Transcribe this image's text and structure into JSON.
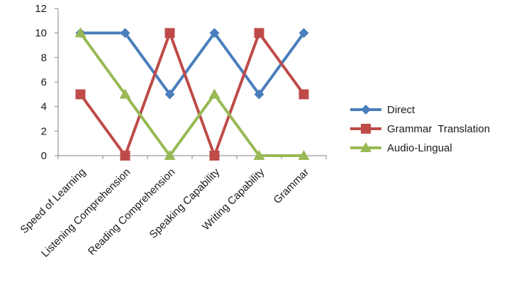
{
  "chart_data": {
    "type": "line",
    "title": "",
    "xlabel": "",
    "ylabel": "",
    "ylim": [
      0,
      12
    ],
    "yticks": [
      0,
      2,
      4,
      6,
      8,
      10,
      12
    ],
    "grid": false,
    "legend_position": "right",
    "categories": [
      "Speed of Learning",
      "Listening Comprehension",
      "Reading Comprehension",
      "Speaking Capability",
      "Writing Capability",
      "Grammar"
    ],
    "series": [
      {
        "name": "Direct",
        "values": [
          10,
          10,
          5,
          10,
          5,
          10
        ],
        "color": "#4a7ebb",
        "marker": "diamond"
      },
      {
        "name": "Grammar  Translation",
        "values": [
          5,
          0,
          10,
          0,
          10,
          5
        ],
        "color": "#be4b48",
        "marker": "square"
      },
      {
        "name": "Audio-Lingual",
        "values": [
          10,
          5,
          0,
          5,
          0,
          0
        ],
        "color": "#98b954",
        "marker": "triangle"
      }
    ]
  }
}
